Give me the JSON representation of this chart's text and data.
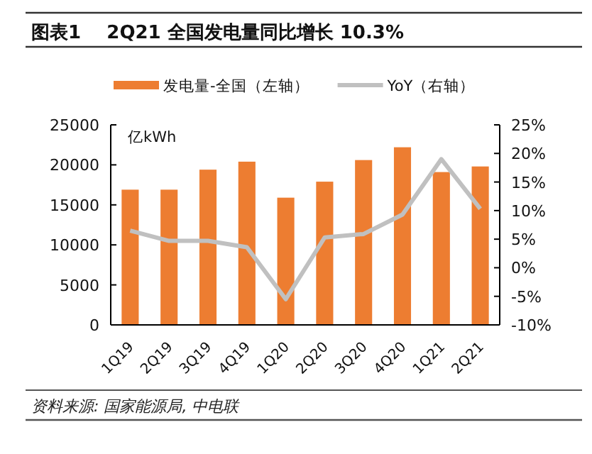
{
  "chart_data": {
    "type": "bar",
    "title": "图表1    2Q21 全国发电量同比增长 10.3%",
    "ylabel": "亿kWh",
    "annotations": [
      "资料来源: 国家能源局, 中电联"
    ],
    "categories": [
      "1Q19",
      "2Q19",
      "3Q19",
      "4Q19",
      "1Q20",
      "2Q20",
      "3Q20",
      "4Q20",
      "1Q21",
      "2Q21"
    ],
    "series": [
      {
        "name": "发电量-全国（左轴）",
        "color": "#ed7d31",
        "values": [
          16900,
          16900,
          19400,
          20400,
          15900,
          17900,
          20600,
          22200,
          19100,
          19800
        ]
      },
      {
        "name": "YoY（右轴）",
        "type": "line",
        "axis": "y2",
        "color": "#c0c0c0",
        "values": [
          6.5,
          4.7,
          4.7,
          3.6,
          -5.5,
          5.3,
          5.9,
          9.3,
          19.0,
          10.3
        ]
      }
    ],
    "ylim": [
      0,
      25000
    ],
    "yticks": [
      0,
      5000,
      10000,
      15000,
      20000,
      25000
    ],
    "y2lim": [
      -10,
      25
    ],
    "y2ticks": [
      {
        "value": -10,
        "label": "-10%"
      },
      {
        "value": -5,
        "label": "-5%"
      },
      {
        "value": 0,
        "label": "0%"
      },
      {
        "value": 5,
        "label": "5%"
      },
      {
        "value": 10,
        "label": "10%"
      },
      {
        "value": 15,
        "label": "15%"
      },
      {
        "value": 20,
        "label": "20%"
      },
      {
        "value": 25,
        "label": "25%"
      }
    ],
    "legend": "top",
    "grid": false
  }
}
